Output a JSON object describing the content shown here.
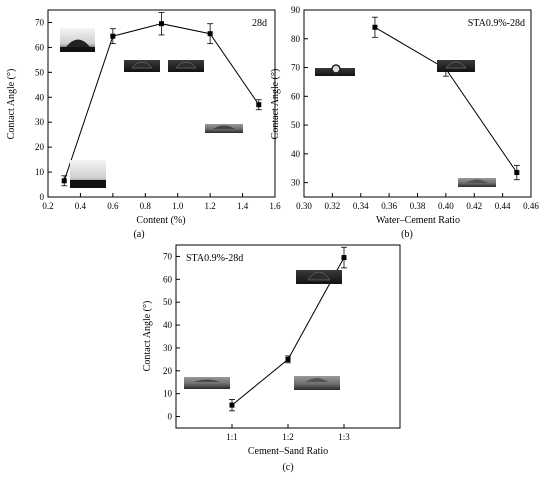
{
  "panel_letters": [
    "(a)",
    "(b)",
    "(c)"
  ],
  "chart_data": [
    {
      "type": "line",
      "panel": "(a)",
      "annotation": "28d",
      "xlabel": "Content (%)",
      "ylabel": "Contact Angle (°)",
      "xlim": [
        0.2,
        1.6
      ],
      "ylim": [
        0,
        75
      ],
      "xticks": [
        "0.2",
        "0.4",
        "0.6",
        "0.8",
        "1.0",
        "1.2",
        "1.4",
        "1.6"
      ],
      "yticks": [
        "0",
        "10",
        "20",
        "30",
        "40",
        "50",
        "60",
        "70"
      ],
      "x": [
        0.3,
        0.6,
        0.9,
        1.2,
        1.5
      ],
      "y": [
        6.5,
        64.5,
        69.5,
        65.5,
        37
      ],
      "error": [
        2,
        3,
        4.5,
        4,
        2
      ],
      "grid": false,
      "marker": "square",
      "line_color": "#000000"
    },
    {
      "type": "line",
      "panel": "(b)",
      "annotation": "STA0.9%-28d",
      "xlabel": "Water–Cement Ratio",
      "ylabel": "Contact Angle (°)",
      "xlim": [
        0.3,
        0.46
      ],
      "ylim": [
        25,
        90
      ],
      "xticks": [
        "0.30",
        "0.32",
        "0.34",
        "0.36",
        "0.38",
        "0.40",
        "0.42",
        "0.44",
        "0.46"
      ],
      "yticks": [
        "30",
        "40",
        "50",
        "60",
        "70",
        "80",
        "90"
      ],
      "x": [
        0.35,
        0.4,
        0.45
      ],
      "y": [
        84,
        69.5,
        33.5
      ],
      "error": [
        3.5,
        2.5,
        2.5
      ],
      "grid": false,
      "marker": "square",
      "line_color": "#000000"
    },
    {
      "type": "line",
      "panel": "(c)",
      "annotation": "STA0.9%-28d",
      "xlabel": "Cement–Sand Ratio",
      "ylabel": "Contact Angle (°)",
      "categories": [
        "1:1",
        "1:2",
        "1:3"
      ],
      "ylim": [
        -5,
        75
      ],
      "yticks": [
        "0",
        "10",
        "20",
        "30",
        "40",
        "50",
        "60",
        "70"
      ],
      "y": [
        5,
        25,
        69.5
      ],
      "error": [
        2.5,
        1.5,
        4.5
      ],
      "grid": false,
      "marker": "square",
      "line_color": "#000000"
    }
  ]
}
